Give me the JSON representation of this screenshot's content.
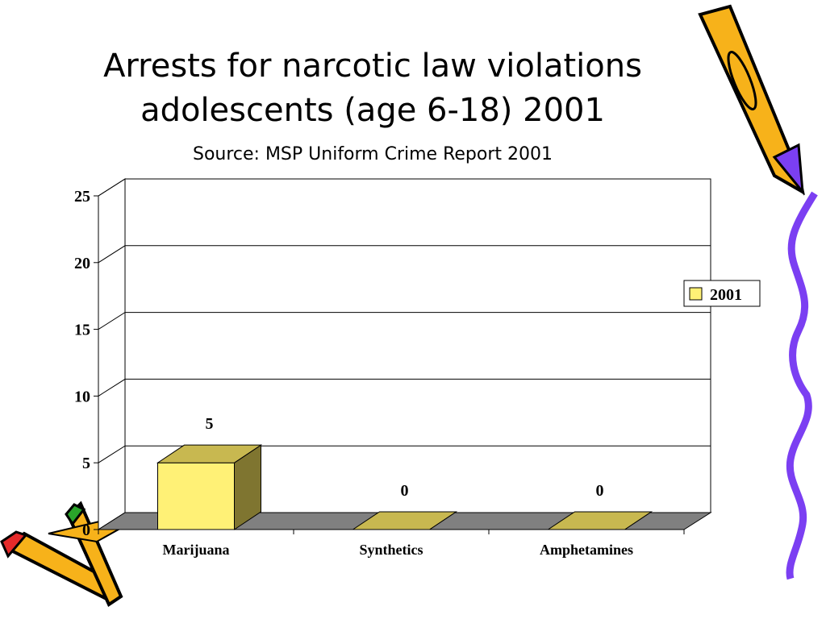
{
  "chart_data": {
    "type": "bar",
    "title": [
      "Arrests for narcotic law violations",
      "adolescents (age 6-18) 2001"
    ],
    "subtitle": "Source: MSP Uniform Crime Report 2001",
    "categories": [
      "Marijuana",
      "Synthetics",
      "Amphetamines"
    ],
    "series": [
      {
        "name": "2001",
        "color": "#fff176",
        "values": [
          5,
          0,
          0
        ]
      }
    ],
    "ylim": [
      0,
      25
    ],
    "yticks": [
      0,
      5,
      10,
      15,
      20,
      25
    ],
    "grid": true,
    "legend": "right",
    "data_labels": true
  }
}
